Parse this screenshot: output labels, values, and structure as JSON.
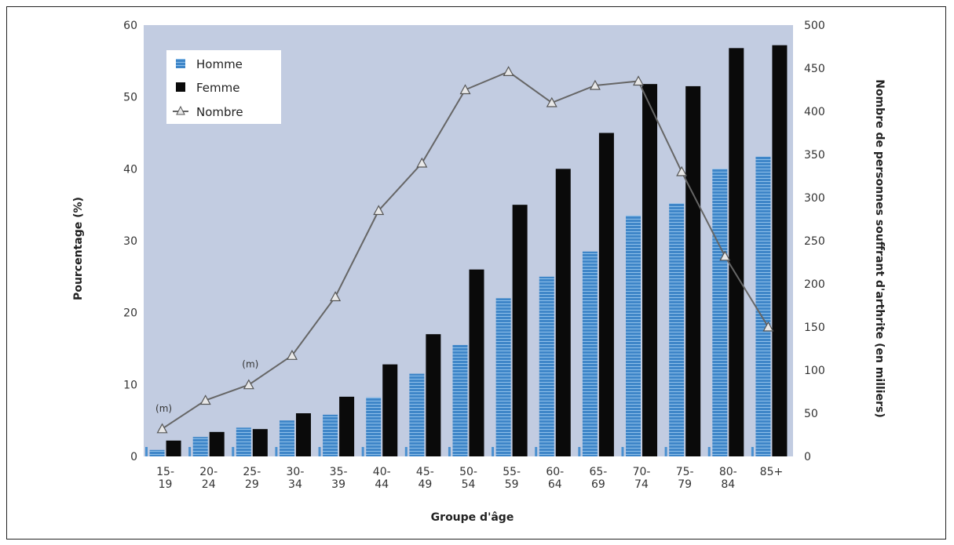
{
  "chart_data": {
    "type": "bar",
    "xlabel": "Groupe d'âge",
    "ylabel": "Pourcentage (%)",
    "y2label": "Nombre de personnes souffrant d'arthrite (en milliers)",
    "ylim": [
      0,
      60
    ],
    "y2lim": [
      0,
      500
    ],
    "yticks": [
      "0",
      "10",
      "20",
      "30",
      "40",
      "50",
      "60"
    ],
    "y2ticks": [
      "0",
      "50",
      "100",
      "150",
      "200",
      "250",
      "300",
      "350",
      "400",
      "450",
      "500"
    ],
    "categories": [
      [
        "15-",
        "19"
      ],
      [
        "20-",
        "24"
      ],
      [
        "25-",
        "29"
      ],
      [
        "30-",
        "34"
      ],
      [
        "35-",
        "39"
      ],
      [
        "40-",
        "44"
      ],
      [
        "45-",
        "49"
      ],
      [
        "50-",
        "54"
      ],
      [
        "55-",
        "59"
      ],
      [
        "60-",
        "64"
      ],
      [
        "65-",
        "69"
      ],
      [
        "70-",
        "74"
      ],
      [
        "75-",
        "79"
      ],
      [
        "80-",
        "84"
      ],
      [
        "85+",
        ""
      ]
    ],
    "series": [
      {
        "name": "Homme",
        "type": "bar",
        "axis": "left",
        "color": "#3f86c8",
        "values": [
          0.9,
          2.7,
          4.0,
          5.0,
          5.8,
          8.2,
          11.5,
          15.5,
          22.0,
          25.0,
          28.5,
          33.5,
          35.2,
          40.0,
          41.7
        ]
      },
      {
        "name": "Femme",
        "type": "bar",
        "axis": "left",
        "color": "#0a0a0a",
        "values": [
          2.2,
          3.4,
          3.8,
          6.0,
          8.3,
          12.8,
          17.0,
          26.0,
          35.0,
          40.0,
          45.0,
          51.8,
          51.5,
          56.8,
          57.2
        ]
      },
      {
        "name": "Nombre",
        "type": "line",
        "axis": "right",
        "color": "#666666",
        "values": [
          32,
          65,
          83,
          117,
          185,
          285,
          340,
          425,
          446,
          410,
          430,
          435,
          330,
          232,
          150
        ]
      }
    ],
    "annotations": [
      {
        "text": "(m)",
        "category_index": 0
      },
      {
        "text": "(m)",
        "category_index": 2
      }
    ],
    "legend": {
      "placement": "top-left",
      "entries": [
        "Homme",
        "Femme",
        "Nombre"
      ]
    },
    "plot_background": "#c2cce1",
    "grid": false
  }
}
